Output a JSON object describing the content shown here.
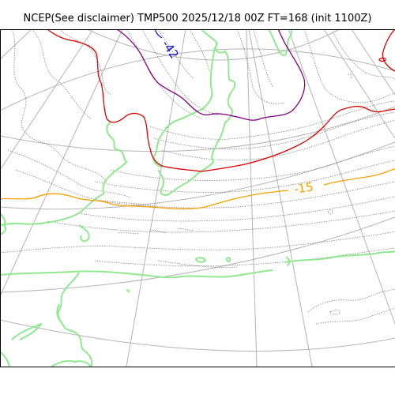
{
  "title": "NCEP(See disclaimer) TMP500 2025/12/18 00Z FT=168 (init 1100Z)",
  "contour_labels": [
    {
      "text": "-15",
      "color": "#f5a000"
    },
    {
      "text": "-42",
      "color": "#1010d0"
    }
  ],
  "colors": {
    "coastline": "#90e890",
    "graticule": "#b4b4b4",
    "dotted_isotherm": "#808080",
    "red_isotherm": "#e00000",
    "orange_isotherm": "#f5a000",
    "purple_isotherm": "#800080",
    "blue_isotherm": "#1010d0"
  }
}
